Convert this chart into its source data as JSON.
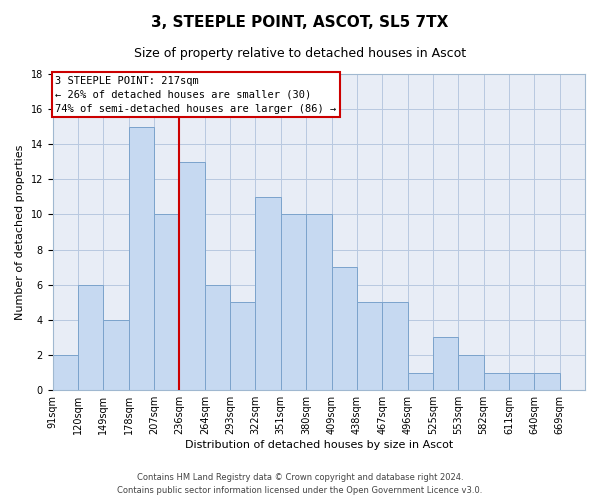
{
  "title": "3, STEEPLE POINT, ASCOT, SL5 7TX",
  "subtitle": "Size of property relative to detached houses in Ascot",
  "xlabel": "Distribution of detached houses by size in Ascot",
  "ylabel": "Number of detached properties",
  "bar_values": [
    2,
    6,
    4,
    15,
    10,
    13,
    6,
    5,
    11,
    10,
    10,
    7,
    5,
    5,
    1,
    3,
    2,
    1,
    1,
    1
  ],
  "bar_labels": [
    "91sqm",
    "120sqm",
    "149sqm",
    "178sqm",
    "207sqm",
    "236sqm",
    "264sqm",
    "293sqm",
    "322sqm",
    "351sqm",
    "380sqm",
    "409sqm",
    "438sqm",
    "467sqm",
    "496sqm",
    "525sqm",
    "553sqm",
    "582sqm",
    "611sqm",
    "640sqm",
    "669sqm"
  ],
  "bar_color": "#c6d9f1",
  "bar_edge_color": "#7ba3cc",
  "vline_x": 4.5,
  "vline_color": "#cc0000",
  "annotation_line1": "3 STEEPLE POINT: 217sqm",
  "annotation_line2": "← 26% of detached houses are smaller (30)",
  "annotation_line3": "74% of semi-detached houses are larger (86) →",
  "annotation_box_color": "#cc0000",
  "ylim": [
    0,
    18
  ],
  "yticks": [
    0,
    2,
    4,
    6,
    8,
    10,
    12,
    14,
    16,
    18
  ],
  "grid_color": "#b8c8e0",
  "bg_color": "#e8edf6",
  "footer_line1": "Contains HM Land Registry data © Crown copyright and database right 2024.",
  "footer_line2": "Contains public sector information licensed under the Open Government Licence v3.0.",
  "title_fontsize": 11,
  "subtitle_fontsize": 9,
  "xlabel_fontsize": 8,
  "ylabel_fontsize": 8,
  "tick_fontsize": 7,
  "annotation_fontsize": 7.5,
  "footer_fontsize": 6
}
